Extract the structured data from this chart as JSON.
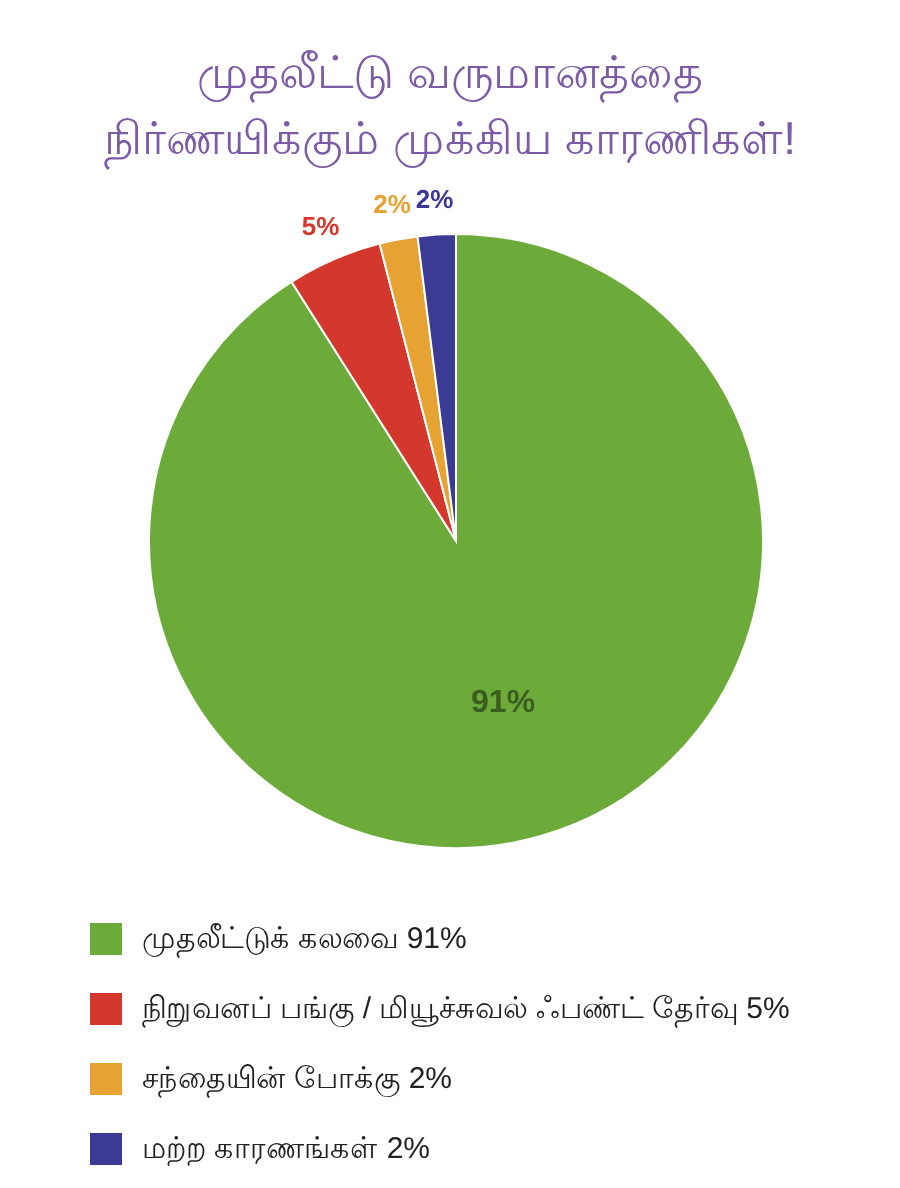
{
  "chart_data": {
    "type": "pie",
    "title": "முதலீட்டு வருமானத்தை\nநிர்ணயிக்கும் முக்கிய காரணிகள்!",
    "categories": [
      "முதலீட்டுக் கலவை 91%",
      "நிறுவனப் பங்கு / மியூச்சுவல் ஃபண்ட் தேர்வு 5%",
      "சந்தையின் போக்கு 2%",
      "மற்ற காரணங்கள் 2%"
    ],
    "values": [
      91,
      5,
      2,
      2
    ],
    "colors": [
      "#6cab3a",
      "#d4382c",
      "#e6a232",
      "#3b3a94"
    ],
    "value_labels": [
      "91%",
      "5%",
      "2%",
      "2%"
    ],
    "legend": "bottom"
  }
}
